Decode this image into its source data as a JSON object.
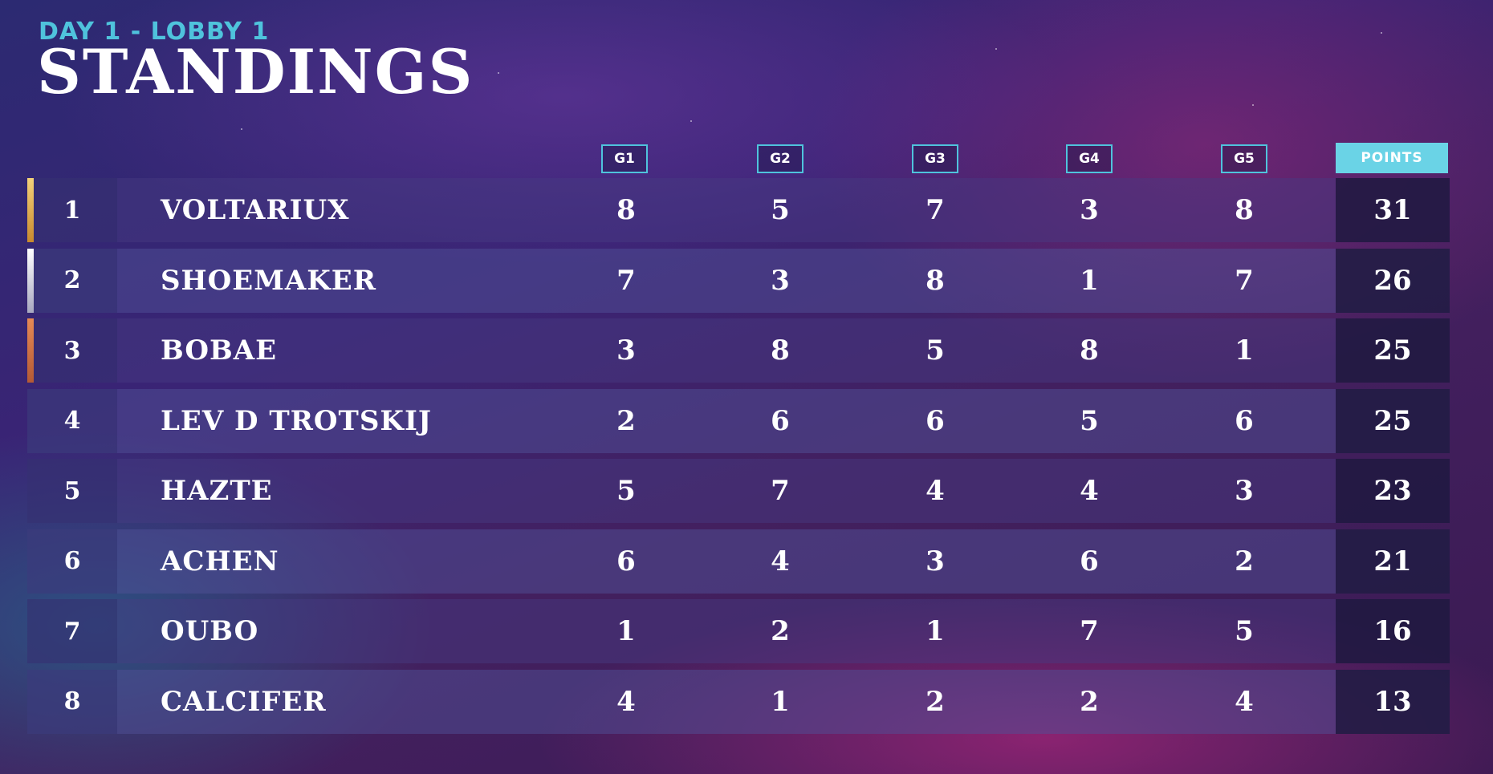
{
  "header": {
    "subtitle": "DAY 1 - LOBBY 1",
    "title": "STANDINGS"
  },
  "columns": {
    "games": [
      "G1",
      "G2",
      "G3",
      "G4",
      "G5"
    ],
    "points": "POINTS"
  },
  "accent_colors": {
    "first": "#e8b650",
    "second": "#d8d8e8",
    "third": "#d97a4a"
  },
  "standings": [
    {
      "rank": "1",
      "name": "VOLTARIUX",
      "games": [
        "8",
        "5",
        "7",
        "3",
        "8"
      ],
      "points": "31"
    },
    {
      "rank": "2",
      "name": "SHOEMAKER",
      "games": [
        "7",
        "3",
        "8",
        "1",
        "7"
      ],
      "points": "26"
    },
    {
      "rank": "3",
      "name": "BOBAE",
      "games": [
        "3",
        "8",
        "5",
        "8",
        "1"
      ],
      "points": "25"
    },
    {
      "rank": "4",
      "name": "LEV D TROTSKIJ",
      "games": [
        "2",
        "6",
        "6",
        "5",
        "6"
      ],
      "points": "25"
    },
    {
      "rank": "5",
      "name": "HAZTE",
      "games": [
        "5",
        "7",
        "4",
        "4",
        "3"
      ],
      "points": "23"
    },
    {
      "rank": "6",
      "name": "ACHEN",
      "games": [
        "6",
        "4",
        "3",
        "6",
        "2"
      ],
      "points": "21"
    },
    {
      "rank": "7",
      "name": "OUBO",
      "games": [
        "1",
        "2",
        "1",
        "7",
        "5"
      ],
      "points": "16"
    },
    {
      "rank": "8",
      "name": "CALCIFER",
      "games": [
        "4",
        "1",
        "2",
        "2",
        "4"
      ],
      "points": "13"
    }
  ]
}
